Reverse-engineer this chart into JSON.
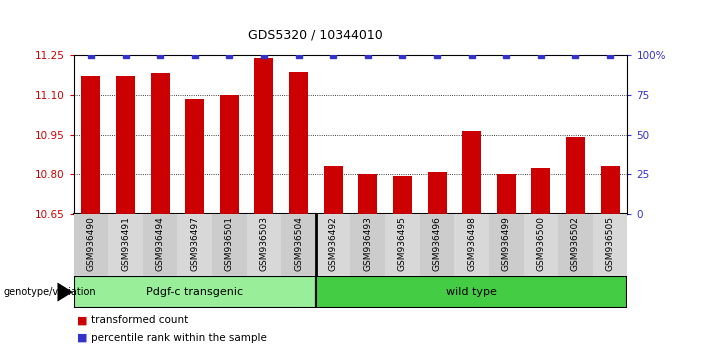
{
  "title": "GDS5320 / 10344010",
  "categories": [
    "GSM936490",
    "GSM936491",
    "GSM936494",
    "GSM936497",
    "GSM936501",
    "GSM936503",
    "GSM936504",
    "GSM936492",
    "GSM936493",
    "GSM936495",
    "GSM936496",
    "GSM936498",
    "GSM936499",
    "GSM936500",
    "GSM936502",
    "GSM936505"
  ],
  "bar_values": [
    11.17,
    11.17,
    11.18,
    11.085,
    11.1,
    11.24,
    11.185,
    10.83,
    10.8,
    10.795,
    10.81,
    10.965,
    10.8,
    10.825,
    10.94,
    10.83
  ],
  "percentile_values": [
    100,
    100,
    100,
    100,
    100,
    100,
    100,
    100,
    100,
    100,
    100,
    100,
    100,
    100,
    100,
    100
  ],
  "bar_color": "#cc0000",
  "percentile_color": "#3333cc",
  "ylim_left": [
    10.65,
    11.25
  ],
  "ylim_right": [
    0,
    100
  ],
  "yticks_left": [
    10.65,
    10.8,
    10.95,
    11.1,
    11.25
  ],
  "yticks_right": [
    0,
    25,
    50,
    75,
    100
  ],
  "ytick_labels_right": [
    "0",
    "25",
    "50",
    "75",
    "100%"
  ],
  "group1_label": "Pdgf-c transgenic",
  "group2_label": "wild type",
  "group1_count": 7,
  "group2_count": 9,
  "group1_color": "#99ee99",
  "group2_color": "#44cc44",
  "genotype_label": "genotype/variation",
  "legend_bar_label": "transformed count",
  "legend_pct_label": "percentile rank within the sample",
  "background_color": "#ffffff",
  "plot_bg_color": "#ffffff",
  "grid_color": "#000000",
  "tick_col_color_odd": "#cccccc",
  "tick_col_color_even": "#dddddd"
}
